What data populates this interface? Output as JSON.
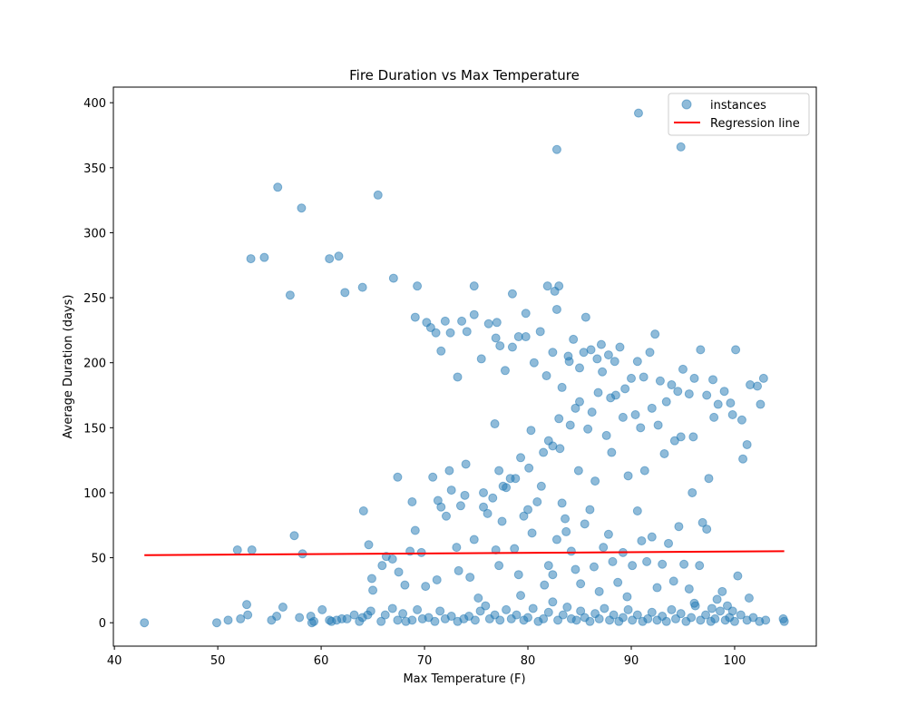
{
  "chart_data": {
    "type": "scatter",
    "title": "Fire Duration vs Max Temperature",
    "xlabel": "Max Temperature (F)",
    "ylabel": "Average Duration (days)",
    "xlim": [
      39.9,
      107.9
    ],
    "ylim": [
      -18,
      412
    ],
    "xticks": [
      40,
      50,
      60,
      70,
      80,
      90,
      100
    ],
    "yticks": [
      0,
      50,
      100,
      150,
      200,
      250,
      300,
      350,
      400
    ],
    "legend_position": "top-right",
    "grid": false,
    "series": [
      {
        "name": "instances",
        "color": "#1f77b4",
        "points": [
          [
            42.9,
            0
          ],
          [
            49.9,
            0
          ],
          [
            51,
            2
          ],
          [
            52.2,
            3
          ],
          [
            52.9,
            6
          ],
          [
            52.8,
            14
          ],
          [
            55.2,
            2
          ],
          [
            55.7,
            5
          ],
          [
            56.3,
            12
          ],
          [
            57.9,
            4
          ],
          [
            59.0,
            5
          ],
          [
            59.1,
            0
          ],
          [
            59.3,
            1
          ],
          [
            60.1,
            10
          ],
          [
            60.8,
            2
          ],
          [
            61.0,
            1
          ],
          [
            61.5,
            2
          ],
          [
            62.0,
            3
          ],
          [
            62.5,
            3
          ],
          [
            63.2,
            6
          ],
          [
            63.7,
            1
          ],
          [
            64.0,
            4
          ],
          [
            64.5,
            6
          ],
          [
            64.8,
            9
          ],
          [
            65.0,
            25
          ],
          [
            64.9,
            34
          ],
          [
            65.8,
            1
          ],
          [
            66.2,
            6
          ],
          [
            66.9,
            11
          ],
          [
            67.4,
            2
          ],
          [
            67.9,
            7
          ],
          [
            68.2,
            1
          ],
          [
            68.8,
            2
          ],
          [
            69.3,
            10
          ],
          [
            69.8,
            3
          ],
          [
            70.4,
            4
          ],
          [
            71.0,
            1
          ],
          [
            71.5,
            9
          ],
          [
            72.0,
            3
          ],
          [
            72.6,
            5
          ],
          [
            73.2,
            1
          ],
          [
            73.8,
            3
          ],
          [
            74.3,
            5
          ],
          [
            74.9,
            2
          ],
          [
            75.4,
            9
          ],
          [
            75.9,
            13
          ],
          [
            76.3,
            3
          ],
          [
            76.8,
            6
          ],
          [
            77.3,
            2
          ],
          [
            77.9,
            10
          ],
          [
            78.4,
            3
          ],
          [
            78.9,
            6
          ],
          [
            79.3,
            21
          ],
          [
            79.6,
            2
          ],
          [
            80.0,
            4
          ],
          [
            80.5,
            11
          ],
          [
            81.0,
            1
          ],
          [
            81.5,
            3
          ],
          [
            82.0,
            8
          ],
          [
            82.4,
            16
          ],
          [
            82.9,
            2
          ],
          [
            83.4,
            6
          ],
          [
            83.8,
            12
          ],
          [
            84.2,
            3
          ],
          [
            84.7,
            2
          ],
          [
            85.1,
            9
          ],
          [
            85.5,
            4
          ],
          [
            86.0,
            1
          ],
          [
            86.5,
            7
          ],
          [
            86.9,
            3
          ],
          [
            87.4,
            11
          ],
          [
            87.9,
            2
          ],
          [
            88.3,
            6
          ],
          [
            88.8,
            1
          ],
          [
            89.2,
            4
          ],
          [
            89.7,
            10
          ],
          [
            90.1,
            2
          ],
          [
            90.6,
            6
          ],
          [
            91.1,
            1
          ],
          [
            91.6,
            3
          ],
          [
            92.0,
            8
          ],
          [
            92.5,
            2
          ],
          [
            93.0,
            5
          ],
          [
            93.4,
            1
          ],
          [
            93.9,
            10
          ],
          [
            94.3,
            3
          ],
          [
            94.8,
            7
          ],
          [
            95.3,
            1
          ],
          [
            95.8,
            4
          ],
          [
            96.2,
            13
          ],
          [
            96.7,
            2
          ],
          [
            97.2,
            6
          ],
          [
            97.7,
            1
          ],
          [
            98.1,
            3
          ],
          [
            98.6,
            9
          ],
          [
            99.1,
            2
          ],
          [
            99.5,
            4
          ],
          [
            100.0,
            1
          ],
          [
            100.6,
            6
          ],
          [
            101.2,
            2
          ],
          [
            101.8,
            4
          ],
          [
            102.4,
            1
          ],
          [
            103.0,
            2
          ],
          [
            104.7,
            3
          ],
          [
            104.8,
            1
          ],
          [
            51.9,
            56
          ],
          [
            53.3,
            56
          ],
          [
            57.4,
            67
          ],
          [
            58.2,
            53
          ],
          [
            64.1,
            86
          ],
          [
            64.6,
            60
          ],
          [
            65.9,
            44
          ],
          [
            66.3,
            51
          ],
          [
            66.9,
            49
          ],
          [
            67.5,
            39
          ],
          [
            68.1,
            29
          ],
          [
            68.6,
            55
          ],
          [
            68.8,
            93
          ],
          [
            69.1,
            71
          ],
          [
            69.7,
            54
          ],
          [
            70.1,
            28
          ],
          [
            70.8,
            112
          ],
          [
            71.2,
            33
          ],
          [
            71.3,
            94
          ],
          [
            71.6,
            89
          ],
          [
            72.1,
            82
          ],
          [
            72.6,
            102
          ],
          [
            73.1,
            58
          ],
          [
            73.3,
            40
          ],
          [
            73.5,
            90
          ],
          [
            73.9,
            98
          ],
          [
            74.4,
            35
          ],
          [
            74.8,
            64
          ],
          [
            75.2,
            19
          ],
          [
            75.7,
            89
          ],
          [
            76.1,
            84
          ],
          [
            76.6,
            96
          ],
          [
            76.9,
            56
          ],
          [
            77.2,
            44
          ],
          [
            77.5,
            78
          ],
          [
            77.9,
            104
          ],
          [
            78.3,
            111
          ],
          [
            78.7,
            57
          ],
          [
            79.1,
            37
          ],
          [
            79.6,
            82
          ],
          [
            80.0,
            87
          ],
          [
            80.4,
            69
          ],
          [
            80.9,
            93
          ],
          [
            81.3,
            105
          ],
          [
            81.6,
            29
          ],
          [
            82.0,
            44
          ],
          [
            82.4,
            37
          ],
          [
            82.8,
            64
          ],
          [
            83.3,
            92
          ],
          [
            83.7,
            70
          ],
          [
            84.2,
            55
          ],
          [
            84.6,
            41
          ],
          [
            85.1,
            30
          ],
          [
            85.5,
            76
          ],
          [
            86.0,
            87
          ],
          [
            86.4,
            43
          ],
          [
            86.9,
            24
          ],
          [
            87.3,
            58
          ],
          [
            87.8,
            68
          ],
          [
            88.2,
            47
          ],
          [
            88.7,
            31
          ],
          [
            89.2,
            54
          ],
          [
            89.6,
            20
          ],
          [
            90.1,
            44
          ],
          [
            90.6,
            86
          ],
          [
            91.0,
            63
          ],
          [
            91.5,
            47
          ],
          [
            92.0,
            66
          ],
          [
            92.5,
            27
          ],
          [
            93.0,
            45
          ],
          [
            93.6,
            61
          ],
          [
            94.1,
            32
          ],
          [
            94.6,
            74
          ],
          [
            95.1,
            45
          ],
          [
            95.6,
            26
          ],
          [
            96.1,
            15
          ],
          [
            96.6,
            44
          ],
          [
            96.9,
            77
          ],
          [
            97.3,
            72
          ],
          [
            97.8,
            11
          ],
          [
            98.3,
            18
          ],
          [
            98.8,
            24
          ],
          [
            99.3,
            13
          ],
          [
            99.8,
            9
          ],
          [
            100.3,
            36
          ],
          [
            101.4,
            19
          ],
          [
            53.2,
            280
          ],
          [
            54.5,
            281
          ],
          [
            55.8,
            335
          ],
          [
            57.0,
            252
          ],
          [
            58.1,
            319
          ],
          [
            60.8,
            280
          ],
          [
            61.7,
            282
          ],
          [
            62.3,
            254
          ],
          [
            64.0,
            258
          ],
          [
            65.5,
            329
          ],
          [
            67.0,
            265
          ],
          [
            69.3,
            259
          ],
          [
            67.4,
            112
          ],
          [
            69.1,
            235
          ],
          [
            70.2,
            231
          ],
          [
            70.6,
            227
          ],
          [
            71.1,
            223
          ],
          [
            71.6,
            209
          ],
          [
            72.0,
            232
          ],
          [
            72.5,
            223
          ],
          [
            73.2,
            189
          ],
          [
            73.6,
            232
          ],
          [
            74.1,
            224
          ],
          [
            74.8,
            237
          ],
          [
            75.5,
            203
          ],
          [
            76.2,
            230
          ],
          [
            76.9,
            219
          ],
          [
            77.3,
            213
          ],
          [
            77.8,
            194
          ],
          [
            78.5,
            212
          ],
          [
            79.1,
            220
          ],
          [
            79.8,
            238
          ],
          [
            80.6,
            200
          ],
          [
            81.2,
            224
          ],
          [
            81.8,
            190
          ],
          [
            82.4,
            208
          ],
          [
            82.8,
            241
          ],
          [
            83.3,
            181
          ],
          [
            83.9,
            205
          ],
          [
            84.4,
            218
          ],
          [
            85.0,
            196
          ],
          [
            85.6,
            235
          ],
          [
            86.1,
            210
          ],
          [
            86.7,
            203
          ],
          [
            87.2,
            193
          ],
          [
            87.8,
            206
          ],
          [
            88.4,
            201
          ],
          [
            88.9,
            212
          ],
          [
            89.4,
            180
          ],
          [
            90.0,
            188
          ],
          [
            90.6,
            201
          ],
          [
            91.2,
            189
          ],
          [
            91.8,
            208
          ],
          [
            92.3,
            222
          ],
          [
            92.8,
            186
          ],
          [
            93.4,
            170
          ],
          [
            93.9,
            183
          ],
          [
            94.5,
            178
          ],
          [
            95.0,
            195
          ],
          [
            95.6,
            176
          ],
          [
            96.1,
            188
          ],
          [
            96.7,
            210
          ],
          [
            97.3,
            175
          ],
          [
            97.9,
            187
          ],
          [
            98.4,
            168
          ],
          [
            99.0,
            178
          ],
          [
            99.6,
            169
          ],
          [
            100.1,
            210
          ],
          [
            100.7,
            156
          ],
          [
            101.2,
            137
          ],
          [
            101.5,
            183
          ],
          [
            102.2,
            182
          ],
          [
            102.5,
            168
          ],
          [
            102.8,
            188
          ],
          [
            100.8,
            126
          ],
          [
            97.5,
            111
          ],
          [
            95.9,
            100
          ],
          [
            94.8,
            143
          ],
          [
            93.2,
            130
          ],
          [
            91.3,
            117
          ],
          [
            89.7,
            113
          ],
          [
            88.1,
            131
          ],
          [
            86.5,
            109
          ],
          [
            84.9,
            117
          ],
          [
            83.1,
            134
          ],
          [
            81.5,
            131
          ],
          [
            80.1,
            119
          ],
          [
            78.8,
            111
          ],
          [
            77.2,
            117
          ],
          [
            75.7,
            100
          ],
          [
            74.0,
            122
          ],
          [
            72.4,
            117
          ],
          [
            76.8,
            153
          ],
          [
            80.3,
            148
          ],
          [
            82.0,
            140
          ],
          [
            84.1,
            152
          ],
          [
            85.8,
            149
          ],
          [
            87.6,
            144
          ],
          [
            89.2,
            158
          ],
          [
            90.9,
            150
          ],
          [
            92.6,
            152
          ],
          [
            94.2,
            140
          ],
          [
            96.0,
            143
          ],
          [
            98.0,
            158
          ],
          [
            99.8,
            160
          ],
          [
            85.0,
            170
          ],
          [
            86.2,
            162
          ],
          [
            88.5,
            175
          ],
          [
            90.4,
            160
          ],
          [
            92.0,
            165
          ],
          [
            83.0,
            157
          ],
          [
            84.6,
            165
          ],
          [
            86.8,
            177
          ],
          [
            88.0,
            173
          ],
          [
            82.4,
            136
          ],
          [
            79.3,
            127
          ],
          [
            77.6,
            105
          ],
          [
            83.6,
            80
          ],
          [
            74.8,
            259
          ],
          [
            77.0,
            231
          ],
          [
            78.5,
            253
          ],
          [
            79.8,
            220
          ],
          [
            81.9,
            259
          ],
          [
            83.0,
            259
          ],
          [
            82.6,
            255
          ],
          [
            84.0,
            201
          ],
          [
            85.4,
            208
          ],
          [
            87.1,
            214
          ],
          [
            82.8,
            364
          ],
          [
            90.7,
            392
          ],
          [
            94.8,
            366
          ]
        ]
      },
      {
        "name": "Regression line",
        "color": "#ff0000",
        "type": "line",
        "points": [
          [
            42.9,
            52
          ],
          [
            104.8,
            55
          ]
        ]
      }
    ]
  }
}
